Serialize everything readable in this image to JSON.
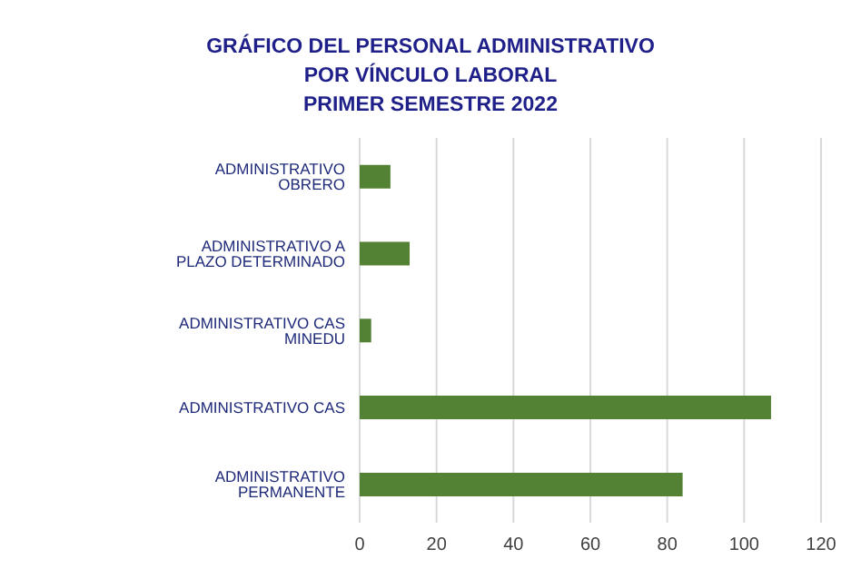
{
  "chart_data": {
    "type": "bar",
    "orientation": "horizontal",
    "title": "GRÁFICO DEL PERSONAL ADMINISTRATIVO\nPOR VÍNCULO LABORAL\nPRIMER SEMESTRE 2022",
    "categories": [
      "ADMINISTRATIVO OBRERO",
      "ADMINISTRATIVO A PLAZO DETERMINADO",
      "ADMINISTRATIVO CAS MINEDU",
      "ADMINISTRATIVO CAS",
      "ADMINISTRATIVO PERMANENTE"
    ],
    "values": [
      8,
      13,
      3,
      107,
      84
    ],
    "color": "#548235",
    "xlim": [
      0,
      120
    ],
    "xticks": [
      0,
      20,
      40,
      60,
      80,
      100,
      120
    ],
    "grid": "x"
  }
}
